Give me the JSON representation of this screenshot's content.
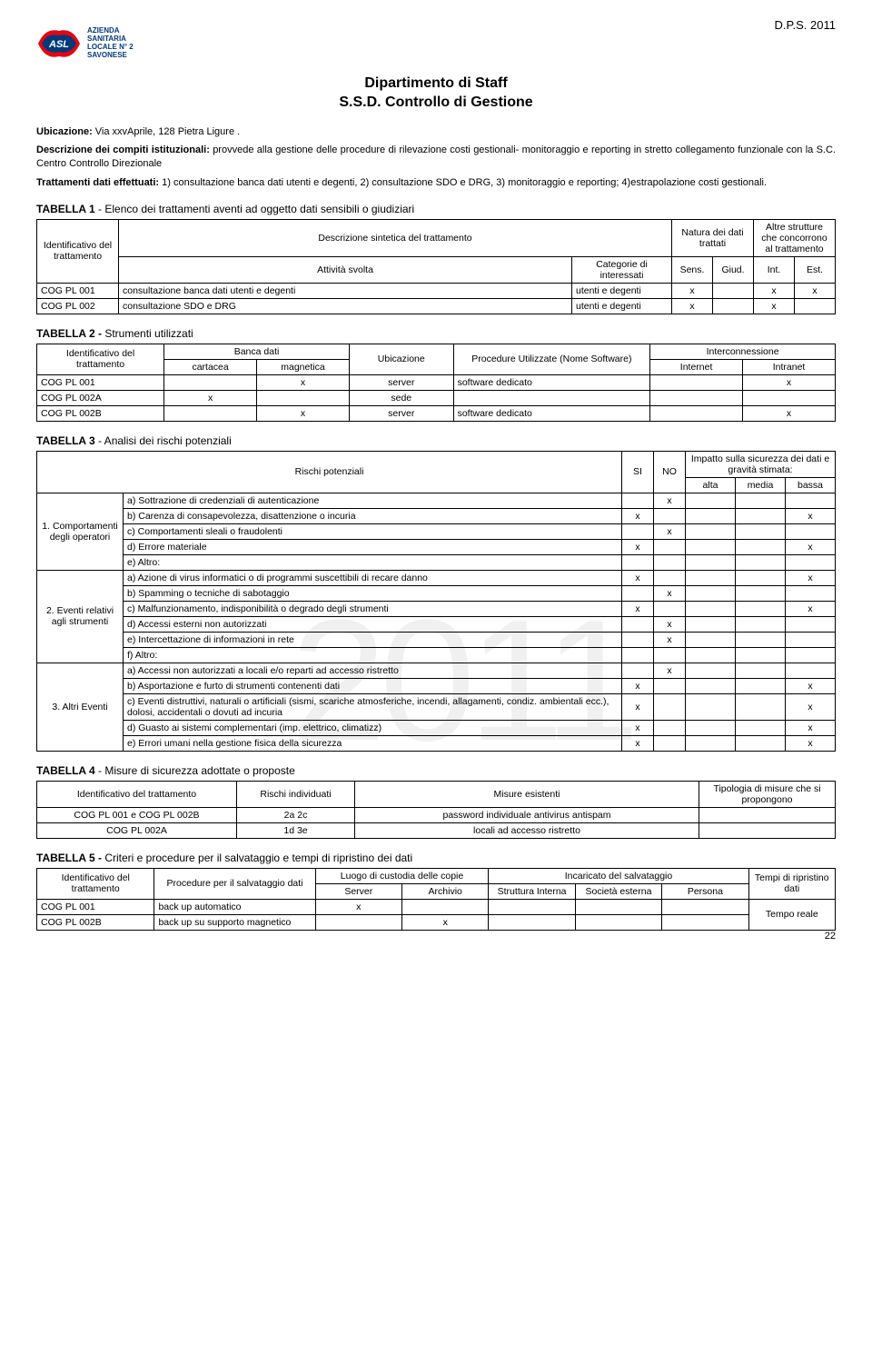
{
  "header": {
    "dps": "D.P.S. 2011",
    "logo_lines": [
      "AZIENDA",
      "SANITARIA",
      "LOCALE N° 2",
      "SAVONESE"
    ],
    "dept_line1": "Dipartimento di Staff",
    "dept_line2": "S.S.D. Controllo di Gestione"
  },
  "ubicazione": {
    "label": "Ubicazione:",
    "value": "Via xxvAprile, 128 Pietra Ligure ."
  },
  "descrizione": {
    "label": "Descrizione dei compiti istituzionali:",
    "text": "provvede alla gestione delle procedure di rilevazione costi gestionali- monitoraggio e reporting in stretto collegamento funzionale con la S.C. Centro Controllo Direzionale"
  },
  "trattamenti": {
    "label": "Trattamenti dati effettuati:",
    "text": "1) consultazione banca dati utenti e degenti,   2) consultazione SDO e DRG, 3) monitoraggio e  reporting;   4)estrapolazione costi gestionali."
  },
  "watermark": "2011",
  "page_num": "22",
  "t1": {
    "title_a": "TABELLA 1",
    "title_b": "-  Elenco dei trattamenti aventi ad oggetto dati sensibili o giudiziari",
    "h_id": "Identificativo del trattamento",
    "h_desc": "Descrizione sintetica del trattamento",
    "h_nat": "Natura dei dati trattati",
    "h_altre": "Altre strutture che concorrono al trattamento",
    "h_att": "Attività svolta",
    "h_cat": "Categorie di interessati",
    "h_sens": "Sens.",
    "h_giud": "Giud.",
    "h_int": "Int.",
    "h_est": "Est.",
    "rows": [
      {
        "id": "COG PL 001",
        "att": "consultazione banca dati utenti e degenti",
        "cat": "utenti e degenti",
        "sens": "x",
        "giud": "",
        "int": "x",
        "est": "x"
      },
      {
        "id": "COG PL 002",
        "att": "consultazione  SDO e DRG",
        "cat": "utenti e degenti",
        "sens": "x",
        "giud": "",
        "int": "x",
        "est": ""
      }
    ]
  },
  "t2": {
    "title_a": "TABELLA 2 -",
    "title_b": "Strumenti utilizzati",
    "h_id": "Identificativo del trattamento",
    "h_banca": "Banca dati",
    "h_ubi": "Ubicazione",
    "h_proc": "Procedure Utilizzate (Nome Software)",
    "h_inter": "Interconnessione",
    "h_cart": "cartacea",
    "h_mag": "magnetica",
    "h_net": "Internet",
    "h_intra": "Intranet",
    "rows": [
      {
        "id": "COG PL 001",
        "cart": "",
        "mag": "x",
        "ubi": "server",
        "proc": "software dedicato",
        "net": "",
        "intra": "x"
      },
      {
        "id": "COG PL  002A",
        "cart": "x",
        "mag": "",
        "ubi": "sede",
        "proc": "",
        "net": "",
        "intra": ""
      },
      {
        "id": "COG PL  002B",
        "cart": "",
        "mag": "x",
        "ubi": "server",
        "proc": "software dedicato",
        "net": "",
        "intra": "x"
      }
    ]
  },
  "t3": {
    "title_a": "TABELLA 3",
    "title_b": "- Analisi dei rischi potenziali",
    "h_rischi": "Rischi potenziali",
    "h_si": "SI",
    "h_no": "NO",
    "h_imp": "Impatto sulla sicurezza dei dati e gravità stimata:",
    "h_alta": "alta",
    "h_media": "media",
    "h_bassa": "bassa",
    "g1": "1. Comportamenti degli operatori",
    "g2": "2. Eventi relativi agli strumenti",
    "g3": "3. Altri Eventi",
    "rows": [
      {
        "g": 1,
        "r": "a) Sottrazione di credenziali di autenticazione",
        "si": "",
        "no": "x",
        "a": "",
        "m": "",
        "b": ""
      },
      {
        "g": 1,
        "r": "b) Carenza di consapevolezza, disattenzione o incuria",
        "si": "x",
        "no": "",
        "a": "",
        "m": "",
        "b": "x"
      },
      {
        "g": 1,
        "r": "c) Comportamenti sleali o fraudolenti",
        "si": "",
        "no": "x",
        "a": "",
        "m": "",
        "b": ""
      },
      {
        "g": 1,
        "r": "d) Errore materiale",
        "si": "x",
        "no": "",
        "a": "",
        "m": "",
        "b": "x"
      },
      {
        "g": 1,
        "r": "e) Altro:",
        "si": "",
        "no": "",
        "a": "",
        "m": "",
        "b": ""
      },
      {
        "g": 2,
        "r": "a) Azione di virus informatici o di programmi suscettibili di recare danno",
        "si": "x",
        "no": "",
        "a": "",
        "m": "",
        "b": "x"
      },
      {
        "g": 2,
        "r": "b) Spamming o tecniche di sabotaggio",
        "si": "",
        "no": "x",
        "a": "",
        "m": "",
        "b": ""
      },
      {
        "g": 2,
        "r": "c) Malfunzionamento, indisponibilità o degrado degli strumenti",
        "si": "x",
        "no": "",
        "a": "",
        "m": "",
        "b": "x"
      },
      {
        "g": 2,
        "r": "d) Accessi esterni non autorizzati",
        "si": "",
        "no": "x",
        "a": "",
        "m": "",
        "b": ""
      },
      {
        "g": 2,
        "r": "e) Intercettazione di informazioni in rete",
        "si": "",
        "no": "x",
        "a": "",
        "m": "",
        "b": ""
      },
      {
        "g": 2,
        "r": "f) Altro:",
        "si": "",
        "no": "",
        "a": "",
        "m": "",
        "b": ""
      },
      {
        "g": 3,
        "r": "a) Accessi non autorizzati a locali e/o reparti ad accesso ristretto",
        "si": "",
        "no": "x",
        "a": "",
        "m": "",
        "b": ""
      },
      {
        "g": 3,
        "r": "b) Asportazione e furto di strumenti contenenti dati",
        "si": "x",
        "no": "",
        "a": "",
        "m": "",
        "b": "x"
      },
      {
        "g": 3,
        "r": "c) Eventi distruttivi, naturali o artificiali (sismi, scariche atmosferiche, incendi, allagamenti, condiz.  ambientali ecc.), dolosi, accidentali o dovuti ad incuria",
        "si": "x",
        "no": "",
        "a": "",
        "m": "",
        "b": "x"
      },
      {
        "g": 3,
        "r": "d) Guasto ai sistemi complementari (imp.  elettrico, climatizz)",
        "si": "x",
        "no": "",
        "a": "",
        "m": "",
        "b": "x"
      },
      {
        "g": 3,
        "r": "e) Errori umani nella gestione fisica della sicurezza",
        "si": "x",
        "no": "",
        "a": "",
        "m": "",
        "b": "x"
      }
    ]
  },
  "t4": {
    "title_a": "TABELLA 4",
    "title_b": "- Misure di sicurezza adottate o proposte",
    "h_id": "Identificativo del trattamento",
    "h_ri": "Rischi individuati",
    "h_me": "Misure esistenti",
    "h_tip": "Tipologia di misure che si propongono",
    "rows": [
      {
        "id": "COG PL  001 e   COG PL  002B",
        "ri": "2a 2c",
        "me": "password individuale antivirus antispam",
        "tip": ""
      },
      {
        "id": "COG PL  002A",
        "ri": "1d 3e",
        "me": "locali ad accesso ristretto",
        "tip": ""
      }
    ]
  },
  "t5": {
    "title_a": "TABELLA 5 -",
    "title_b": "Criteri e procedure per il salvataggio e tempi di  ripristino dei dati",
    "h_id": "Identificativo del trattamento",
    "h_proc": "Procedure per il salvataggio  dati",
    "h_luogo": "Luogo di custodia delle copie",
    "h_inc": "Incaricato del salvataggio",
    "h_tempi": "Tempi  di ripristino dati",
    "h_srv": "Server",
    "h_arc": "Archivio",
    "h_str": "Struttura Interna",
    "h_soc": "Società esterna",
    "h_per": "Persona",
    "rows": [
      {
        "id": "COG PL  001",
        "proc": "back up automatico",
        "srv": "x",
        "arc": "",
        "str": "",
        "soc": "",
        "per": ""
      },
      {
        "id": "COG PL  002B",
        "proc": "back up su supporto magnetico",
        "srv": "",
        "arc": "x",
        "str": "",
        "soc": "",
        "per": ""
      }
    ],
    "tempo": "Tempo reale"
  }
}
